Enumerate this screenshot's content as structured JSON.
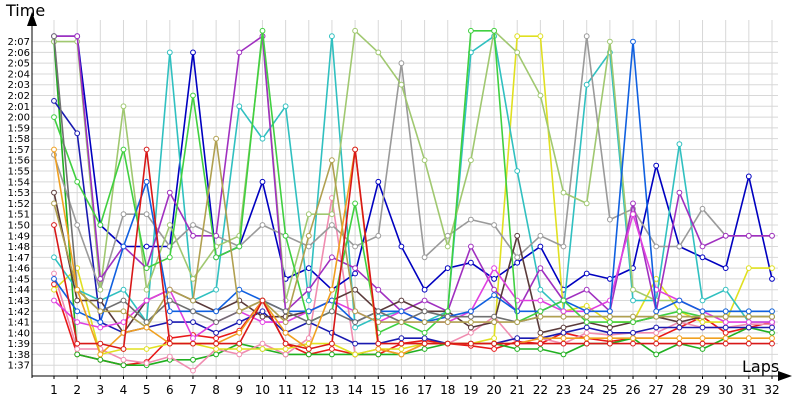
{
  "chart_data": {
    "type": "line",
    "title": "",
    "ylabel": "Time",
    "xlabel": "Laps",
    "grid": true,
    "legend": "none",
    "xlim": [
      1,
      32
    ],
    "ylim": [
      96,
      129
    ],
    "x": [
      1,
      2,
      3,
      4,
      5,
      6,
      7,
      8,
      9,
      10,
      11,
      12,
      13,
      14,
      15,
      16,
      17,
      18,
      19,
      20,
      21,
      22,
      23,
      24,
      25,
      26,
      27,
      28,
      29,
      30,
      31,
      32
    ],
    "x_ticks": [
      "1",
      "2",
      "3",
      "4",
      "5",
      "6",
      "7",
      "8",
      "9",
      "10",
      "11",
      "12",
      "13",
      "14",
      "15",
      "16",
      "17",
      "18",
      "19",
      "20",
      "21",
      "22",
      "23",
      "24",
      "25",
      "26",
      "27",
      "28",
      "29",
      "30",
      "31",
      "32"
    ],
    "y_ticks": [
      {
        "v": 97,
        "label": "1:37"
      },
      {
        "v": 98,
        "label": "1:38"
      },
      {
        "v": 99,
        "label": "1:39"
      },
      {
        "v": 100,
        "label": "1:40"
      },
      {
        "v": 101,
        "label": "1:41"
      },
      {
        "v": 102,
        "label": "1:42"
      },
      {
        "v": 103,
        "label": "1:43"
      },
      {
        "v": 104,
        "label": "1:44"
      },
      {
        "v": 105,
        "label": "1:45"
      },
      {
        "v": 106,
        "label": "1:46"
      },
      {
        "v": 107,
        "label": "1:47"
      },
      {
        "v": 108,
        "label": "1:48"
      },
      {
        "v": 109,
        "label": "1:49"
      },
      {
        "v": 110,
        "label": "1:50"
      },
      {
        "v": 111,
        "label": "1:51"
      },
      {
        "v": 112,
        "label": "1:52"
      },
      {
        "v": 113,
        "label": "1:53"
      },
      {
        "v": 114,
        "label": "1:54"
      },
      {
        "v": 115,
        "label": "1:55"
      },
      {
        "v": 116,
        "label": "1:56"
      },
      {
        "v": 117,
        "label": "1:57"
      },
      {
        "v": 118,
        "label": "1:58"
      },
      {
        "v": 119,
        "label": "1:59"
      },
      {
        "v": 120,
        "label": "2:00"
      },
      {
        "v": 121,
        "label": "2:01"
      },
      {
        "v": 122,
        "label": "2:02"
      },
      {
        "v": 123,
        "label": "2:03"
      },
      {
        "v": 124,
        "label": "2:04"
      },
      {
        "v": 125,
        "label": "2:05"
      },
      {
        "v": 126,
        "label": "2:06"
      },
      {
        "v": 127,
        "label": "2:07"
      }
    ],
    "series": [
      {
        "color": "#e81818",
        "values": [
          104.5,
          98.0,
          97.5,
          97.0,
          97.3,
          99.5,
          99.8,
          99.5,
          100.2,
          103.0,
          99.0,
          98.0,
          98.5,
          98.0,
          98.0,
          99.0,
          99.3,
          99.0,
          98.8,
          98.5,
          99.2,
          99.0,
          100.0,
          99.5,
          99.2,
          99.5,
          99.5,
          100.5,
          101.5,
          100.0,
          100.5,
          101.0
        ]
      },
      {
        "color": "#20b020",
        "values": [
          127.0,
          98.0,
          97.5,
          97.0,
          97.0,
          97.5,
          97.5,
          98.0,
          99.0,
          98.5,
          98.0,
          98.0,
          98.0,
          98.0,
          98.0,
          98.0,
          98.5,
          99.0,
          99.0,
          99.0,
          98.5,
          98.5,
          98.0,
          99.0,
          99.0,
          99.5,
          98.0,
          99.0,
          98.5,
          99.5,
          100.5,
          100.0
        ]
      },
      {
        "color": "#f08cb0",
        "values": [
          105.5,
          98.5,
          98.5,
          97.5,
          97.2,
          97.8,
          96.5,
          98.5,
          98.0,
          99.0,
          98.0,
          99.5,
          112.5,
          98.0,
          98.5,
          98.0,
          99.0,
          99.0,
          100.0,
          101.5,
          99.0,
          99.5,
          99.0,
          100.0,
          99.8,
          100.0,
          100.0,
          101.0,
          100.5,
          100.5,
          100.8,
          100.8
        ]
      },
      {
        "color": "#1a1ab0",
        "values": [
          121.5,
          118.5,
          101.0,
          100.0,
          100.5,
          101.0,
          101.0,
          100.0,
          101.0,
          102.0,
          100.0,
          101.0,
          100.0,
          99.0,
          99.0,
          99.5,
          99.5,
          99.0,
          99.0,
          99.0,
          99.5,
          99.5,
          100.0,
          100.5,
          100.0,
          100.0,
          100.5,
          100.5,
          100.5,
          100.5,
          100.5,
          100.5
        ]
      },
      {
        "color": "#0000c0",
        "values": [
          127.5,
          127.5,
          110.0,
          108.0,
          108.0,
          108.0,
          126.0,
          107.0,
          108.0,
          114.0,
          105.0,
          106.0,
          104.0,
          105.5,
          114.0,
          108.0,
          104.0,
          106.0,
          106.5,
          105.0,
          106.5,
          108.0,
          104.0,
          105.5,
          105.0,
          106.0,
          115.5,
          108.0,
          107.0,
          106.0,
          114.5,
          105.0
        ]
      },
      {
        "color": "#e0e020",
        "values": [
          104.0,
          106.0,
          98.0,
          98.5,
          98.5,
          99.0,
          99.0,
          98.5,
          98.5,
          98.5,
          98.5,
          99.0,
          99.0,
          98.0,
          98.5,
          98.5,
          99.0,
          99.0,
          99.0,
          99.5,
          127.5,
          127.5,
          102.0,
          102.5,
          101.0,
          101.0,
          105.0,
          102.0,
          101.0,
          101.0,
          106.0,
          106.0
        ]
      },
      {
        "color": "#30c0c0",
        "values": [
          107.0,
          104.0,
          103.0,
          104.0,
          101.0,
          126.0,
          103.0,
          104.0,
          121.0,
          118.0,
          121.0,
          103.0,
          127.5,
          100.5,
          101.5,
          102.0,
          101.0,
          102.0,
          126.0,
          127.5,
          115.0,
          104.0,
          102.0,
          123.0,
          126.0,
          103.0,
          103.0,
          117.5,
          103.0,
          104.0,
          101.0,
          101.0
        ]
      },
      {
        "color": "#9a9a9a",
        "values": [
          116.5,
          110.0,
          104.0,
          111.0,
          111.0,
          108.0,
          110.0,
          109.0,
          108.0,
          110.0,
          109.0,
          108.0,
          110.0,
          108.0,
          109.0,
          125.0,
          107.0,
          109.0,
          110.5,
          110.0,
          107.0,
          109.0,
          108.0,
          127.5,
          110.5,
          111.5,
          108.0,
          108.0,
          111.5,
          109.0,
          109.0,
          109.0
        ]
      },
      {
        "color": "#a0c870",
        "values": [
          127.0,
          127.0,
          104.0,
          121.0,
          104.0,
          110.0,
          105.0,
          108.0,
          109.0,
          127.5,
          103.0,
          111.0,
          111.0,
          128.0,
          126.0,
          123.0,
          116.0,
          108.0,
          116.0,
          128.0,
          126.0,
          122.0,
          113.0,
          112.0,
          127.0,
          104.0,
          103.0,
          103.0,
          102.0,
          102.0,
          102.0,
          102.0
        ]
      },
      {
        "color": "#a030c0",
        "values": [
          127.5,
          127.5,
          105.0,
          108.0,
          106.0,
          113.0,
          109.0,
          109.0,
          126.0,
          127.5,
          102.0,
          104.0,
          107.0,
          106.0,
          104.0,
          102.0,
          103.0,
          102.0,
          108.0,
          104.0,
          102.0,
          106.0,
          103.0,
          104.0,
          102.0,
          112.0,
          102.0,
          113.0,
          108.0,
          109.0,
          109.0,
          109.0
        ]
      },
      {
        "color": "#5a3a3a",
        "values": [
          113.0,
          103.0,
          103.0,
          100.0,
          103.0,
          104.0,
          103.0,
          102.0,
          103.0,
          101.5,
          101.5,
          102.0,
          103.0,
          104.0,
          102.0,
          103.0,
          102.0,
          102.0,
          100.5,
          101.0,
          109.0,
          100.0,
          100.5,
          101.0,
          100.5,
          101.0,
          101.5,
          101.0,
          101.5,
          101.5,
          101.5,
          101.5
        ]
      },
      {
        "color": "#e040e0",
        "values": [
          103.0,
          101.0,
          100.5,
          101.0,
          103.0,
          104.0,
          99.5,
          101.0,
          102.0,
          101.0,
          101.0,
          102.0,
          103.0,
          102.0,
          101.0,
          102.0,
          101.0,
          101.0,
          102.0,
          106.0,
          103.0,
          103.0,
          102.0,
          102.0,
          103.0,
          111.0,
          104.0,
          103.0,
          102.0,
          101.0,
          101.0,
          101.0
        ]
      },
      {
        "color": "#1060e0",
        "values": [
          105.0,
          102.0,
          101.0,
          108.0,
          114.0,
          102.0,
          102.0,
          102.0,
          104.0,
          103.0,
          102.0,
          102.0,
          103.0,
          101.0,
          102.0,
          102.0,
          101.0,
          101.5,
          102.0,
          103.5,
          102.0,
          102.0,
          103.0,
          102.0,
          102.0,
          127.0,
          102.0,
          103.0,
          102.0,
          102.0,
          102.0,
          102.0
        ]
      },
      {
        "color": "#40d040",
        "values": [
          120.0,
          114.0,
          110.0,
          117.0,
          106.0,
          107.0,
          122.0,
          107.0,
          108.0,
          128.0,
          109.0,
          101.0,
          102.0,
          112.0,
          100.0,
          101.0,
          100.0,
          102.0,
          128.0,
          128.0,
          101.0,
          102.0,
          103.0,
          101.0,
          101.0,
          101.0,
          101.5,
          102.0,
          101.5,
          101.5,
          101.5,
          101.5
        ]
      },
      {
        "color": "#707070",
        "values": [
          127.5,
          104.0,
          102.0,
          103.0,
          101.0,
          103.0,
          102.0,
          101.0,
          102.0,
          103.0,
          102.0,
          101.0,
          102.0,
          101.0,
          102.0,
          101.0,
          102.0,
          101.5,
          101.5,
          101.5,
          101.0,
          101.5,
          101.5,
          101.5,
          101.5,
          101.5,
          101.5,
          101.5,
          101.5,
          101.5,
          101.5,
          101.5
        ]
      },
      {
        "color": "#b0a050",
        "values": [
          112.0,
          104.0,
          102.0,
          102.0,
          100.5,
          104.0,
          103.0,
          118.0,
          102.0,
          103.0,
          101.0,
          109.0,
          116.0,
          102.0,
          101.0,
          101.0,
          101.0,
          101.0,
          101.0,
          101.0,
          101.0,
          101.5,
          101.5,
          101.5,
          101.5,
          101.5,
          101.5,
          101.5,
          101.5,
          101.5,
          101.5,
          101.5
        ]
      },
      {
        "color": "#f0a020",
        "values": [
          117.0,
          104.0,
          98.0,
          100.0,
          100.5,
          99.0,
          99.0,
          99.0,
          100.0,
          103.0,
          100.0,
          98.5,
          104.0,
          117.0,
          98.5,
          98.0,
          99.0,
          99.0,
          99.0,
          99.0,
          99.0,
          99.5,
          99.5,
          99.5,
          99.5,
          99.5,
          99.5,
          99.5,
          99.5,
          99.5,
          99.5,
          99.5
        ]
      },
      {
        "color": "#d81818",
        "values": [
          110.0,
          99.0,
          99.0,
          98.5,
          117.0,
          99.0,
          99.0,
          99.0,
          99.0,
          103.0,
          99.0,
          98.5,
          99.0,
          117.0,
          99.0,
          99.0,
          99.0,
          99.0,
          99.0,
          99.0,
          99.0,
          99.0,
          99.0,
          99.0,
          99.0,
          99.0,
          99.0,
          99.0,
          99.0,
          99.0,
          99.0,
          99.0
        ]
      }
    ]
  }
}
